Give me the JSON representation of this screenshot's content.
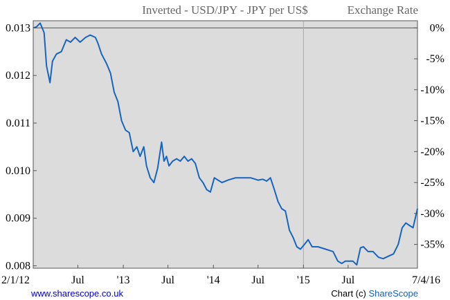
{
  "header": {
    "title": "Inverted - USD/JPY - JPY per US$",
    "right_label": "Exchange Rate"
  },
  "footer": {
    "website": "www.sharescope.co.uk",
    "credit_prefix": "Chart (c) ",
    "credit_brand": "ShareScope"
  },
  "colors": {
    "line": "#1565c0",
    "plot_background": "#dcdcdc",
    "link": "#0000cc",
    "brand": "#1a5fb4"
  },
  "chart_data": {
    "type": "line",
    "title": "Inverted - USD/JPY - JPY per US$",
    "right_axis_label": "Exchange Rate",
    "grid": false,
    "xlim": [
      "2012-01-02",
      "2016-04-07"
    ],
    "ylim": [
      0.00795,
      0.01315
    ],
    "x_ticks": [
      {
        "label": "2/1/12",
        "date": "2012-01-02"
      },
      {
        "label": "Jul",
        "date": "2012-07-01"
      },
      {
        "label": "'13",
        "date": "2013-01-01"
      },
      {
        "label": "Jul",
        "date": "2013-07-01"
      },
      {
        "label": "'14",
        "date": "2014-01-01"
      },
      {
        "label": "Jul",
        "date": "2014-07-01"
      },
      {
        "label": "'15",
        "date": "2015-01-01"
      },
      {
        "label": "Jul",
        "date": "2015-07-01"
      },
      {
        "label": "7/4/16",
        "date": "2016-04-07"
      }
    ],
    "y_ticks_left": [
      {
        "label": "0.013",
        "value": 0.013
      },
      {
        "label": "0.012",
        "value": 0.012
      },
      {
        "label": "0.011",
        "value": 0.011
      },
      {
        "label": "0.010",
        "value": 0.01
      },
      {
        "label": "0.009",
        "value": 0.009
      },
      {
        "label": "0.008",
        "value": 0.008
      }
    ],
    "y_ticks_right": [
      {
        "label": "0%",
        "value": 0.013
      },
      {
        "label": "-5%",
        "value": 0.01235
      },
      {
        "label": "-10%",
        "value": 0.0117
      },
      {
        "label": "-15%",
        "value": 0.01105
      },
      {
        "label": "-20%",
        "value": 0.0104
      },
      {
        "label": "-25%",
        "value": 0.00975
      },
      {
        "label": "-30%",
        "value": 0.0091
      },
      {
        "label": "-35%",
        "value": 0.00845
      }
    ],
    "reference_line": 0.013,
    "vertical_marker": "2015-01-01",
    "series": [
      {
        "x": [
          "2012-01-02",
          "2012-01-15",
          "2012-01-30",
          "2012-02-15",
          "2012-02-25",
          "2012-03-10",
          "2012-03-20",
          "2012-04-05",
          "2012-04-25",
          "2012-05-15",
          "2012-06-01",
          "2012-06-20",
          "2012-07-10",
          "2012-08-01",
          "2012-08-20",
          "2012-09-10",
          "2012-09-20",
          "2012-10-05",
          "2012-10-25",
          "2012-11-10",
          "2012-11-25",
          "2012-12-10",
          "2012-12-25",
          "2013-01-10",
          "2013-01-25",
          "2013-02-10",
          "2013-02-25",
          "2013-03-10",
          "2013-03-25",
          "2013-04-05",
          "2013-04-20",
          "2013-05-05",
          "2013-05-20",
          "2013-06-05",
          "2013-06-15",
          "2013-06-25",
          "2013-07-05",
          "2013-07-20",
          "2013-08-05",
          "2013-08-20",
          "2013-09-05",
          "2013-09-20",
          "2013-10-05",
          "2013-10-20",
          "2013-11-05",
          "2013-11-20",
          "2013-12-05",
          "2013-12-20",
          "2014-01-05",
          "2014-01-20",
          "2014-02-05",
          "2014-03-01",
          "2014-04-01",
          "2014-05-01",
          "2014-06-01",
          "2014-07-01",
          "2014-07-20",
          "2014-08-05",
          "2014-08-20",
          "2014-09-05",
          "2014-09-20",
          "2014-10-05",
          "2014-10-20",
          "2014-11-05",
          "2014-11-20",
          "2014-12-05",
          "2014-12-20",
          "2015-01-05",
          "2015-01-20",
          "2015-02-05",
          "2015-03-01",
          "2015-04-01",
          "2015-05-01",
          "2015-05-20",
          "2015-06-05",
          "2015-06-20",
          "2015-07-05",
          "2015-07-20",
          "2015-08-05",
          "2015-08-20",
          "2015-09-01",
          "2015-09-20",
          "2015-10-10",
          "2015-11-01",
          "2015-11-20",
          "2015-12-10",
          "2016-01-01",
          "2016-01-20",
          "2016-02-05",
          "2016-02-20",
          "2016-03-05",
          "2016-03-20",
          "2016-04-07"
        ],
        "values": [
          0.013,
          0.01302,
          0.0131,
          0.0129,
          0.0122,
          0.01185,
          0.0123,
          0.01245,
          0.0125,
          0.01275,
          0.0127,
          0.0128,
          0.0127,
          0.0128,
          0.01285,
          0.0128,
          0.01268,
          0.01245,
          0.01225,
          0.01205,
          0.01165,
          0.01145,
          0.01105,
          0.01085,
          0.0108,
          0.0104,
          0.0105,
          0.0103,
          0.0105,
          0.0101,
          0.00985,
          0.00975,
          0.01005,
          0.0106,
          0.0102,
          0.0103,
          0.0101,
          0.0102,
          0.01025,
          0.0102,
          0.0103,
          0.0102,
          0.01025,
          0.01015,
          0.00985,
          0.00975,
          0.0096,
          0.00955,
          0.00985,
          0.0098,
          0.00975,
          0.0098,
          0.00985,
          0.00985,
          0.00985,
          0.0098,
          0.00982,
          0.00978,
          0.00985,
          0.0096,
          0.00935,
          0.0092,
          0.00915,
          0.00875,
          0.0086,
          0.0084,
          0.00835,
          0.00845,
          0.00855,
          0.0084,
          0.0084,
          0.00835,
          0.0083,
          0.0081,
          0.00805,
          0.0081,
          0.0081,
          0.0081,
          0.00802,
          0.00838,
          0.0084,
          0.0083,
          0.0083,
          0.00818,
          0.00815,
          0.0082,
          0.00825,
          0.00845,
          0.0088,
          0.0089,
          0.00885,
          0.0088,
          0.0092
        ]
      }
    ]
  }
}
